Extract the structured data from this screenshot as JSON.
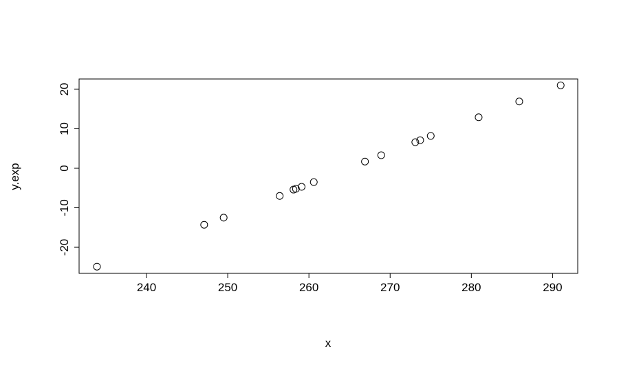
{
  "chart_data": {
    "type": "scatter",
    "title": "",
    "xlabel": "x",
    "ylabel": "y.exp",
    "xlim": [
      231.7,
      293.1
    ],
    "ylim": [
      -26.6,
      22.6
    ],
    "xticks": [
      240,
      250,
      260,
      270,
      280,
      290
    ],
    "yticks": [
      -20,
      -10,
      0,
      10,
      20
    ],
    "grid": false,
    "marker": "open-circle",
    "points": [
      {
        "x": 233.9,
        "y": -24.9
      },
      {
        "x": 247.1,
        "y": -14.3
      },
      {
        "x": 249.5,
        "y": -12.5
      },
      {
        "x": 256.4,
        "y": -7.0
      },
      {
        "x": 258.1,
        "y": -5.4
      },
      {
        "x": 258.4,
        "y": -5.2
      },
      {
        "x": 259.1,
        "y": -4.7
      },
      {
        "x": 260.6,
        "y": -3.5
      },
      {
        "x": 266.9,
        "y": 1.7
      },
      {
        "x": 268.9,
        "y": 3.3
      },
      {
        "x": 273.1,
        "y": 6.6
      },
      {
        "x": 273.7,
        "y": 7.1
      },
      {
        "x": 275.0,
        "y": 8.2
      },
      {
        "x": 280.9,
        "y": 12.9
      },
      {
        "x": 285.9,
        "y": 16.9
      },
      {
        "x": 291.0,
        "y": 21.0
      }
    ]
  }
}
